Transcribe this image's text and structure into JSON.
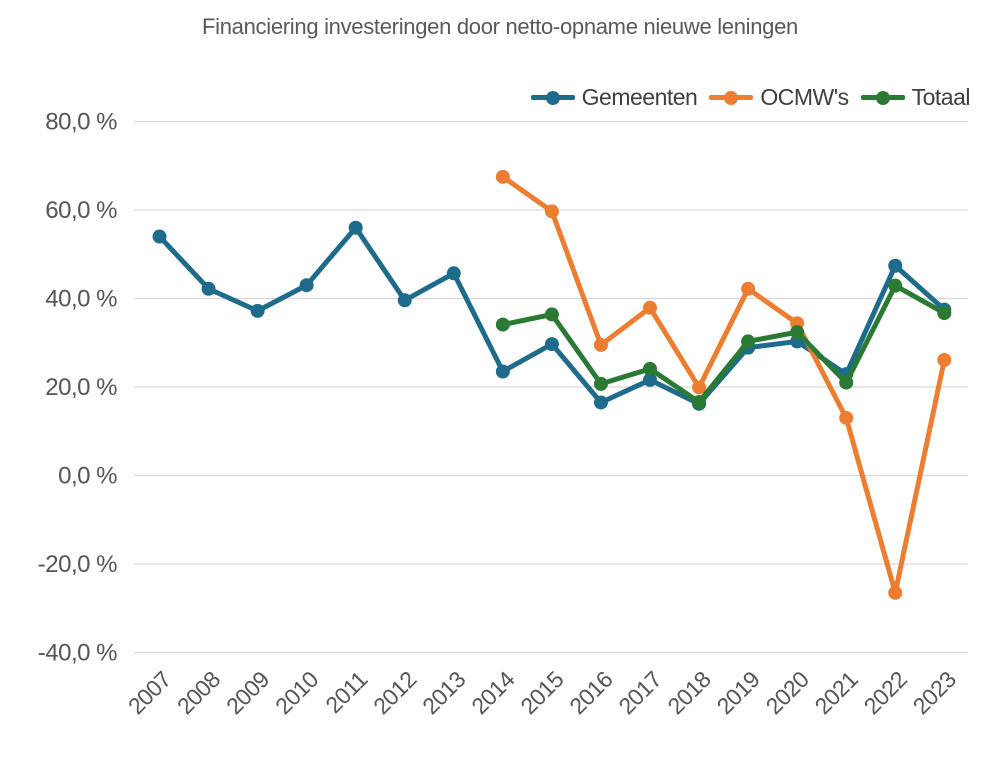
{
  "chart_data": {
    "type": "line",
    "title": "Financiering investeringen door netto-opname nieuwe leningen",
    "categories": [
      "2007",
      "2008",
      "2009",
      "2010",
      "2011",
      "2012",
      "2013",
      "2014",
      "2015",
      "2016",
      "2017",
      "2018",
      "2019",
      "2020",
      "2021",
      "2022",
      "2023"
    ],
    "series": [
      {
        "name": "Gemeenten",
        "color": "#1F6B8C",
        "values": [
          54.0,
          42.2,
          37.2,
          43.0,
          56.0,
          39.6,
          45.7,
          23.5,
          29.7,
          16.5,
          21.6,
          16.2,
          28.9,
          30.3,
          22.9,
          47.4,
          37.5
        ]
      },
      {
        "name": "OCMW's",
        "color": "#ED7D31",
        "values": [
          null,
          null,
          null,
          null,
          null,
          null,
          null,
          67.5,
          59.7,
          29.5,
          37.9,
          19.9,
          42.2,
          34.4,
          13.0,
          -26.5,
          26.1
        ]
      },
      {
        "name": "Totaal",
        "color": "#2B7A33",
        "values": [
          null,
          null,
          null,
          null,
          null,
          null,
          null,
          34.1,
          36.4,
          20.7,
          24.1,
          16.6,
          30.3,
          32.4,
          21.0,
          42.9,
          36.7
        ]
      }
    ],
    "y_axis": {
      "min": -40,
      "max": 80,
      "step": 20,
      "tick_values": [
        80,
        60,
        40,
        20,
        0,
        -20,
        -40
      ],
      "tick_labels": [
        "80,0 %",
        "60,0 %",
        "40,0 %",
        "20,0 %",
        "0,0 %",
        "-20,0 %",
        "-40,0 %"
      ],
      "unit": "percent"
    },
    "x_axis": {
      "label_rotation_deg": -45
    },
    "legend_position": "top-right",
    "grid": "horizontal-only"
  }
}
